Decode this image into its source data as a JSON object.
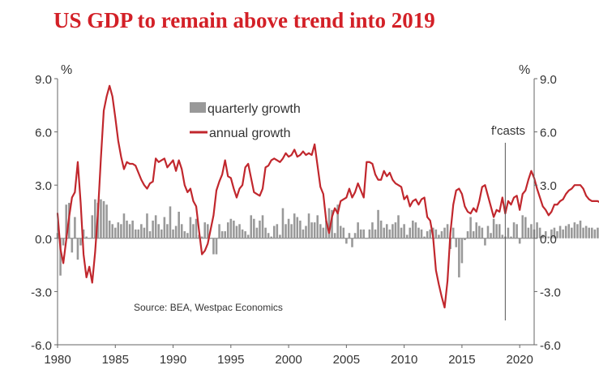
{
  "chart_data": {
    "type": "bar+line",
    "title": "US GDP to remain above trend into 2019",
    "left_unit": "%",
    "right_unit": "%",
    "left_ticks": [
      "9.0",
      "6.0",
      "3.0",
      "0.0",
      "-3.0",
      "-6.0"
    ],
    "right_ticks": [
      "9.0",
      "6.0",
      "3.0",
      "0.0",
      "-3.0",
      "-6.0"
    ],
    "x_ticks": [
      "1980",
      "1985",
      "1990",
      "1995",
      "2000",
      "2005",
      "2010",
      "2015",
      "2020"
    ],
    "ylim": [
      -6,
      9
    ],
    "xlim": [
      1980,
      2021.25
    ],
    "forecast_start": 2018.75,
    "forecast_label": "f'casts",
    "source": "Source: BEA, Westpac Economics",
    "legend": {
      "bar": "quarterly growth",
      "line": "annual growth"
    },
    "colors": {
      "bars": "#999999",
      "line": "#c1272d",
      "axis": "#666666",
      "title": "#d32027"
    },
    "series": [
      {
        "name": "quarterly growth",
        "kind": "bar",
        "x_start": 1980.0,
        "step": 0.25,
        "values": [
          0.3,
          -2.1,
          -0.4,
          1.9,
          2.0,
          -0.8,
          1.2,
          -1.2,
          -0.4,
          0.5,
          0.1,
          0.0,
          1.3,
          2.2,
          2.0,
          2.2,
          2.1,
          1.9,
          1.0,
          0.8,
          0.6,
          0.9,
          0.8,
          1.4,
          1.0,
          0.8,
          1.0,
          0.5,
          0.5,
          0.8,
          0.6,
          1.4,
          0.4,
          1.0,
          1.3,
          0.8,
          0.5,
          1.2,
          0.8,
          1.8,
          0.5,
          0.7,
          1.5,
          0.8,
          0.4,
          0.3,
          1.2,
          0.8,
          1.1,
          0.2,
          0.1,
          0.9,
          0.8,
          0.0,
          -0.9,
          -0.9,
          0.8,
          0.4,
          0.4,
          0.9,
          1.1,
          1.0,
          0.7,
          0.8,
          0.5,
          0.4,
          0.2,
          1.3,
          1.1,
          0.6,
          1.0,
          1.3,
          0.6,
          0.3,
          0.1,
          0.7,
          0.8,
          0.2,
          1.7,
          0.8,
          1.1,
          0.8,
          1.4,
          1.2,
          1.0,
          0.5,
          0.7,
          1.4,
          0.9,
          0.9,
          1.3,
          0.8,
          0.6,
          1.0,
          1.7,
          1.6,
          0.3,
          1.9,
          0.7,
          0.6,
          -0.3,
          0.3,
          -0.5,
          0.3,
          0.9,
          0.5,
          0.5,
          0.0,
          0.5,
          0.9,
          0.5,
          1.6,
          1.0,
          0.6,
          0.8,
          0.5,
          0.8,
          0.9,
          1.3,
          0.6,
          0.8,
          0.2,
          0.6,
          1.0,
          0.9,
          0.6,
          0.5,
          0.1,
          0.4,
          0.5,
          0.6,
          0.5,
          0.2,
          0.4,
          0.6,
          0.8,
          -0.6,
          0.6,
          -0.5,
          -2.2,
          -1.4,
          -0.1,
          0.4,
          1.2,
          0.4,
          0.9,
          0.7,
          0.6,
          -0.4,
          0.7,
          0.3,
          1.1,
          0.8,
          0.8,
          0.2,
          0.1,
          0.6,
          0.1,
          0.9,
          0.8,
          -0.3,
          1.3,
          1.2,
          0.6,
          0.8,
          0.5,
          0.9,
          0.6,
          0.2,
          0.4,
          0.1,
          0.5,
          0.6,
          0.4,
          0.7,
          0.5,
          0.7,
          0.8,
          0.6,
          0.9,
          0.8,
          1.0,
          0.6,
          0.7,
          0.6,
          0.6,
          0.5,
          0.6,
          0.6,
          0.5,
          0.5,
          0.5
        ]
      },
      {
        "name": "annual growth",
        "kind": "line",
        "x_start": 1980.0,
        "step": 0.25,
        "values": [
          1.4,
          -0.6,
          -1.4,
          -0.1,
          1.2,
          2.3,
          2.6,
          4.3,
          2.0,
          -0.9,
          -2.2,
          -1.6,
          -2.5,
          -0.8,
          1.5,
          4.5,
          7.2,
          8.0,
          8.6,
          8.0,
          6.8,
          5.5,
          4.6,
          3.9,
          4.3,
          4.2,
          4.2,
          4.1,
          3.7,
          3.3,
          3.0,
          2.8,
          3.1,
          3.2,
          4.5,
          4.3,
          4.4,
          4.5,
          4.0,
          4.2,
          4.4,
          3.8,
          4.4,
          3.9,
          3.0,
          2.6,
          2.8,
          2.1,
          1.8,
          0.4,
          -0.9,
          -0.7,
          -0.3,
          0.5,
          1.3,
          2.7,
          3.2,
          3.6,
          4.4,
          3.5,
          3.4,
          2.8,
          2.3,
          2.8,
          3.0,
          4.0,
          4.2,
          3.4,
          2.6,
          2.5,
          2.4,
          2.8,
          4.0,
          4.1,
          4.4,
          4.5,
          4.4,
          4.3,
          4.5,
          4.8,
          4.6,
          4.7,
          5.0,
          4.6,
          4.7,
          4.9,
          4.7,
          4.8,
          4.7,
          5.3,
          4.1,
          2.9,
          2.5,
          1.0,
          0.3,
          1.2,
          1.7,
          1.4,
          2.1,
          2.2,
          2.3,
          2.8,
          2.3,
          2.6,
          3.1,
          2.7,
          2.3,
          4.3,
          4.3,
          4.2,
          3.6,
          3.3,
          3.3,
          3.8,
          3.5,
          3.7,
          3.3,
          3.1,
          3.0,
          2.9,
          2.2,
          2.4,
          1.8,
          2.1,
          2.2,
          1.9,
          2.2,
          2.3,
          1.2,
          1.0,
          0.1,
          -1.8,
          -2.6,
          -3.3,
          -3.9,
          -2.4,
          0.3,
          1.9,
          2.7,
          2.8,
          2.5,
          1.8,
          1.5,
          1.4,
          1.7,
          1.5,
          2.1,
          2.9,
          3.0,
          2.4,
          1.8,
          1.2,
          1.6,
          1.5,
          2.3,
          1.4,
          2.1,
          1.9,
          2.3,
          2.4,
          1.6,
          2.5,
          2.7,
          3.3,
          3.8,
          3.4,
          2.8,
          2.3,
          1.8,
          1.6,
          1.3,
          1.5,
          1.9,
          1.9,
          2.1,
          2.2,
          2.5,
          2.7,
          2.8,
          3.0,
          3.0,
          3.0,
          2.8,
          2.4,
          2.2,
          2.1,
          2.1,
          2.1,
          2.0,
          2.1,
          2.0
        ]
      }
    ]
  }
}
